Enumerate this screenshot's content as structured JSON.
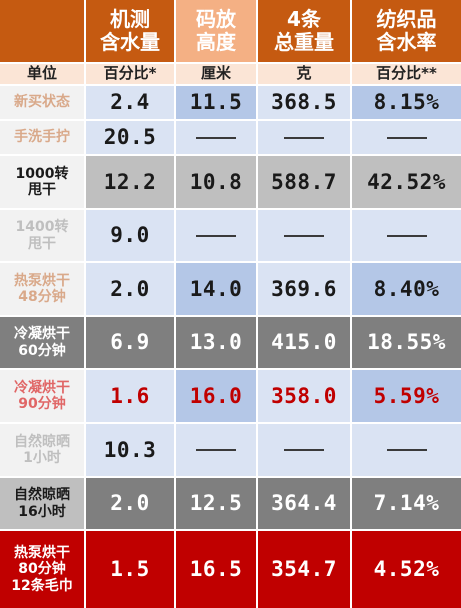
{
  "colors": {
    "header_dark": "#c55a11",
    "header_light": "#f4b084",
    "header_mid": "#ed7d31",
    "unit_bg": "#fbe5d6",
    "grid_line": "#ffffff"
  },
  "headers": [
    "",
    "机测\n含水量",
    "码放\n高度",
    "4条\n总重量",
    "纺织品\n含水率"
  ],
  "units": [
    "单位",
    "百分比*",
    "厘米",
    "克",
    "百分比**"
  ],
  "rows": [
    {
      "label": "新买状态",
      "values": [
        "2.4",
        "11.5",
        "368.5",
        "8.15%"
      ],
      "label_color": "#d9a98a",
      "label_bg": "#f2f2f2",
      "bg": [
        "#dae3f3",
        "#b4c7e7",
        "#dae3f3",
        "#b4c7e7"
      ],
      "color": "#1a1a1a"
    },
    {
      "label": "手洗手拧",
      "values": [
        "20.5",
        "—",
        "—",
        "—"
      ],
      "label_color": "#d9a98a",
      "label_bg": "#f2f2f2",
      "bg": [
        "#dae3f3",
        "#dae3f3",
        "#dae3f3",
        "#dae3f3"
      ],
      "color": "#1a1a1a"
    },
    {
      "label": "1000转\n甩干",
      "values": [
        "12.2",
        "10.8",
        "588.7",
        "42.52%"
      ],
      "label_color": "#1a1a1a",
      "label_bg": "#f2f2f2",
      "bg": [
        "#bfbfbf",
        "#bfbfbf",
        "#bfbfbf",
        "#bfbfbf"
      ],
      "color": "#1a1a1a"
    },
    {
      "label": "1400转\n甩干",
      "values": [
        "9.0",
        "—",
        "—",
        "—"
      ],
      "label_color": "#bfbfbf",
      "label_bg": "#f2f2f2",
      "bg": [
        "#dae3f3",
        "#dae3f3",
        "#dae3f3",
        "#dae3f3"
      ],
      "color": "#1a1a1a"
    },
    {
      "label": "热泵烘干\n48分钟",
      "values": [
        "2.0",
        "14.0",
        "369.6",
        "8.40%"
      ],
      "label_color": "#d9a98a",
      "label_bg": "#f2f2f2",
      "bg": [
        "#dae3f3",
        "#b4c7e7",
        "#dae3f3",
        "#b4c7e7"
      ],
      "color": "#1a1a1a"
    },
    {
      "label": "冷凝烘干\n60分钟",
      "values": [
        "6.9",
        "13.0",
        "415.0",
        "18.55%"
      ],
      "label_color": "#ffffff",
      "label_bg": "#7f7f7f",
      "bg": [
        "#7f7f7f",
        "#7f7f7f",
        "#7f7f7f",
        "#7f7f7f"
      ],
      "color": "#ffffff"
    },
    {
      "label": "冷凝烘干\n90分钟",
      "values": [
        "1.6",
        "16.0",
        "358.0",
        "5.59%"
      ],
      "label_color": "#e06666",
      "label_bg": "#f2f2f2",
      "bg": [
        "#dae3f3",
        "#b4c7e7",
        "#dae3f3",
        "#b4c7e7"
      ],
      "color": "#c00000"
    },
    {
      "label": "自然晾晒\n1小时",
      "values": [
        "10.3",
        "—",
        "—",
        "—"
      ],
      "label_color": "#bfbfbf",
      "label_bg": "#f2f2f2",
      "bg": [
        "#dae3f3",
        "#dae3f3",
        "#dae3f3",
        "#dae3f3"
      ],
      "color": "#1a1a1a"
    },
    {
      "label": "自然晾晒\n16小时",
      "values": [
        "2.0",
        "12.5",
        "364.4",
        "7.14%"
      ],
      "label_color": "#1a1a1a",
      "label_bg": "#bfbfbf",
      "bg": [
        "#7f7f7f",
        "#7f7f7f",
        "#7f7f7f",
        "#7f7f7f"
      ],
      "color": "#ffffff"
    },
    {
      "label": "热泵烘干\n80分钟\n12条毛巾",
      "values": [
        "1.5",
        "16.5",
        "354.7",
        "4.52%"
      ],
      "label_color": "#ffffff",
      "label_bg": "#c00000",
      "bg": [
        "#c00000",
        "#c00000",
        "#c00000",
        "#c00000"
      ],
      "color": "#ffffff"
    }
  ]
}
